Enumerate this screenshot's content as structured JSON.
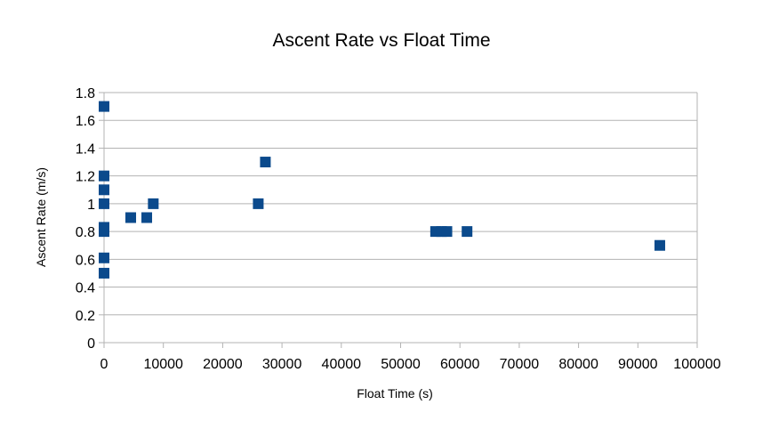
{
  "chart_data": {
    "type": "scatter",
    "title": "Ascent Rate vs Float Time",
    "xlabel": "Float Time (s)",
    "ylabel": "Ascent Rate (m/s)",
    "xlim": [
      0,
      100000
    ],
    "ylim": [
      0,
      1.8
    ],
    "x_ticks": [
      "0",
      "10000",
      "20000",
      "30000",
      "40000",
      "50000",
      "60000",
      "70000",
      "80000",
      "90000",
      "100000"
    ],
    "y_ticks": [
      "0",
      "0.2",
      "0.4",
      "0.6",
      "0.8",
      "1",
      "1.2",
      "1.4",
      "1.6",
      "1.8"
    ],
    "grid": "horizontal",
    "legend": "none",
    "marker": "square",
    "marker_color": "#0b4a8c",
    "grid_color": "#b3b3b3",
    "series": [
      {
        "points": [
          {
            "x": 0,
            "y": 1.7
          },
          {
            "x": 0,
            "y": 1.2
          },
          {
            "x": 0,
            "y": 1.1
          },
          {
            "x": 0,
            "y": 1.0
          },
          {
            "x": 0,
            "y": 0.83
          },
          {
            "x": 0,
            "y": 0.8
          },
          {
            "x": 0,
            "y": 0.61
          },
          {
            "x": 0,
            "y": 0.5
          },
          {
            "x": 4500,
            "y": 0.9
          },
          {
            "x": 7200,
            "y": 0.9
          },
          {
            "x": 8300,
            "y": 1.0
          },
          {
            "x": 26000,
            "y": 1.0
          },
          {
            "x": 27200,
            "y": 1.3
          },
          {
            "x": 55900,
            "y": 0.8
          },
          {
            "x": 56900,
            "y": 0.8
          },
          {
            "x": 57800,
            "y": 0.8
          },
          {
            "x": 61200,
            "y": 0.8
          },
          {
            "x": 93700,
            "y": 0.7
          }
        ]
      }
    ]
  }
}
